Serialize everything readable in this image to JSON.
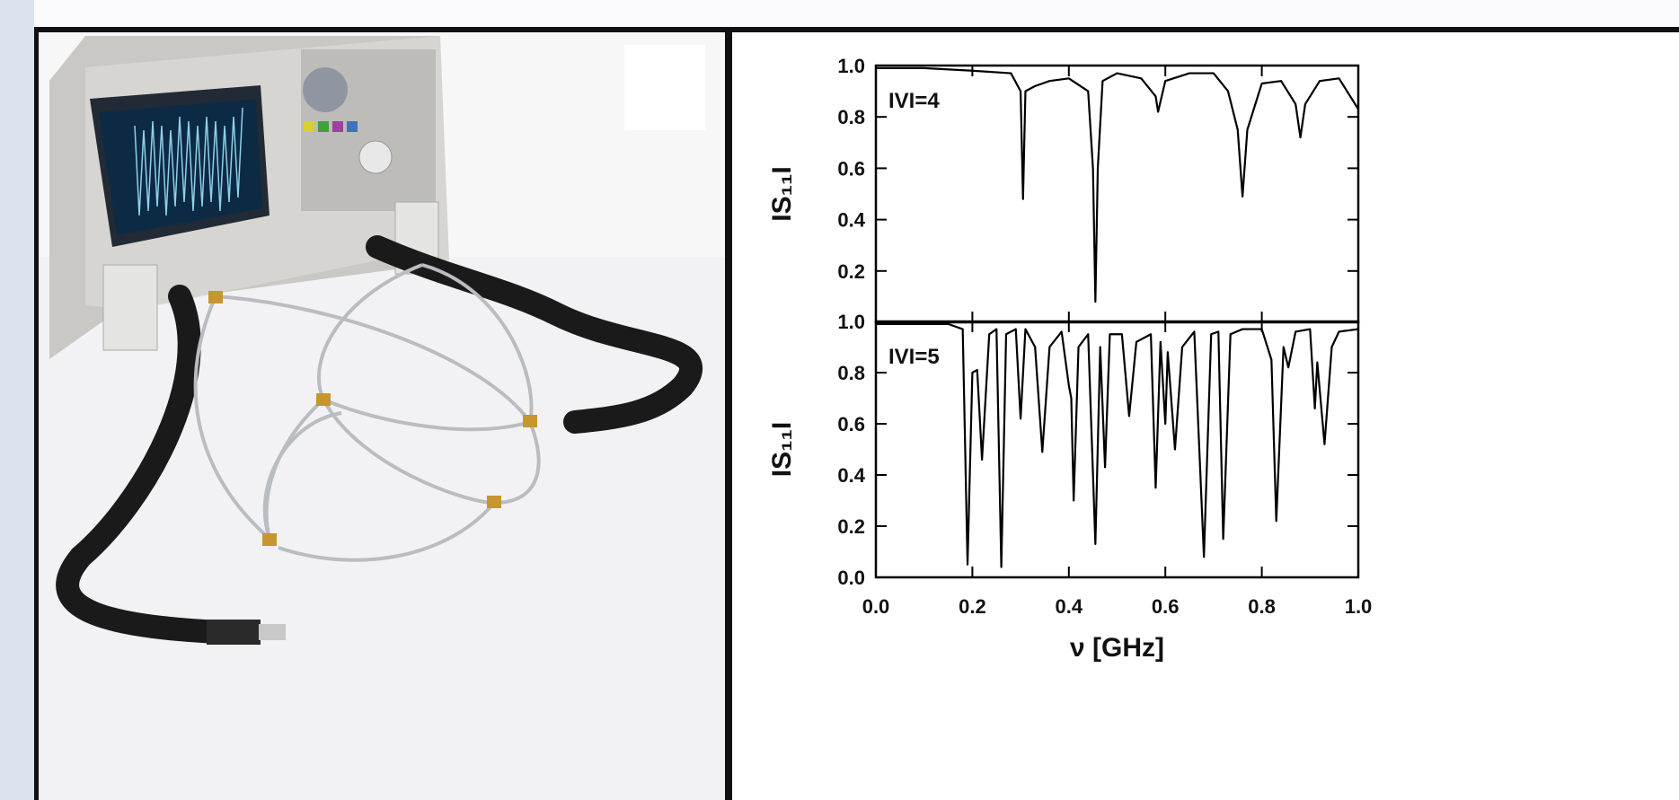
{
  "chart_data": [
    {
      "type": "line",
      "annotation": "IVI=4",
      "ylabel": "IS₁₁I",
      "color": "#000000",
      "xlim": [
        0,
        1
      ],
      "ylim": [
        0,
        1
      ],
      "yticks": [
        0.2,
        0.4,
        0.6,
        0.8,
        {
          "value": 1,
          "label": "1.0"
        }
      ],
      "x": [
        0,
        0.1,
        0.2,
        0.28,
        0.3,
        0.305,
        0.31,
        0.33,
        0.36,
        0.4,
        0.44,
        0.45,
        0.455,
        0.46,
        0.47,
        0.5,
        0.55,
        0.58,
        0.585,
        0.6,
        0.65,
        0.7,
        0.73,
        0.75,
        0.76,
        0.77,
        0.8,
        0.84,
        0.87,
        0.88,
        0.89,
        0.92,
        0.96,
        1.0
      ],
      "values": [
        0.99,
        0.99,
        0.98,
        0.97,
        0.9,
        0.48,
        0.9,
        0.92,
        0.94,
        0.95,
        0.9,
        0.6,
        0.08,
        0.6,
        0.94,
        0.97,
        0.95,
        0.88,
        0.82,
        0.94,
        0.97,
        0.97,
        0.9,
        0.75,
        0.49,
        0.75,
        0.93,
        0.94,
        0.85,
        0.72,
        0.85,
        0.94,
        0.95,
        0.83
      ]
    },
    {
      "type": "line",
      "annotation": "IVI=5",
      "ylabel": "IS₁₁I",
      "xlabel": "ν [GHz]",
      "color": "#000000",
      "xlim": [
        0,
        1
      ],
      "ylim": [
        0,
        1
      ],
      "xticks": [
        {
          "value": 0,
          "label": "0.0"
        },
        0.2,
        0.4,
        0.6,
        0.8,
        {
          "value": 1,
          "label": "1.0"
        }
      ],
      "yticks": [
        {
          "value": 0,
          "label": "0.0"
        },
        0.2,
        0.4,
        0.6,
        0.8,
        {
          "value": 1,
          "label": "1.0"
        }
      ],
      "x": [
        0,
        0.15,
        0.18,
        0.19,
        0.2,
        0.21,
        0.22,
        0.235,
        0.25,
        0.26,
        0.27,
        0.29,
        0.3,
        0.31,
        0.33,
        0.345,
        0.36,
        0.385,
        0.4,
        0.405,
        0.41,
        0.42,
        0.44,
        0.455,
        0.465,
        0.475,
        0.485,
        0.51,
        0.525,
        0.54,
        0.57,
        0.58,
        0.59,
        0.6,
        0.605,
        0.62,
        0.635,
        0.66,
        0.68,
        0.695,
        0.71,
        0.72,
        0.735,
        0.76,
        0.8,
        0.82,
        0.83,
        0.845,
        0.855,
        0.87,
        0.9,
        0.91,
        0.915,
        0.93,
        0.945,
        0.96,
        1.0
      ],
      "values": [
        0.99,
        0.99,
        0.97,
        0.05,
        0.8,
        0.81,
        0.46,
        0.95,
        0.97,
        0.04,
        0.95,
        0.97,
        0.62,
        0.97,
        0.9,
        0.49,
        0.9,
        0.96,
        0.75,
        0.7,
        0.3,
        0.9,
        0.95,
        0.13,
        0.9,
        0.43,
        0.95,
        0.95,
        0.63,
        0.92,
        0.95,
        0.35,
        0.92,
        0.6,
        0.88,
        0.5,
        0.9,
        0.96,
        0.08,
        0.95,
        0.96,
        0.15,
        0.95,
        0.97,
        0.97,
        0.85,
        0.22,
        0.9,
        0.82,
        0.96,
        0.97,
        0.66,
        0.84,
        0.52,
        0.9,
        0.96,
        0.97
      ]
    }
  ]
}
